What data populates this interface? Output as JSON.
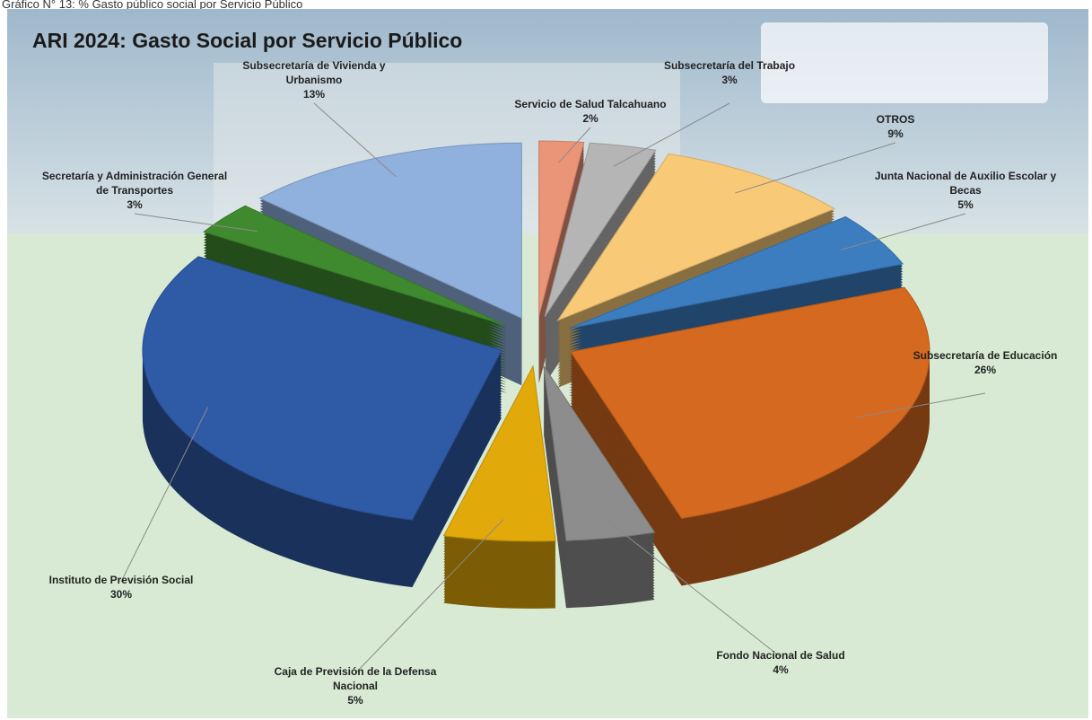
{
  "caption": "Gráfico N° 13: % Gasto público social por Servicio Público",
  "chart_data": {
    "type": "pie",
    "title": "ARI 2024: Gasto Social por Servicio Público",
    "categories": [
      "Servicio de Salud Talcahuano",
      "Subsecretaría del Trabajo",
      "OTROS",
      "Junta Nacional de Auxilio Escolar y Becas",
      "Subsecretaría de Educación",
      "Fondo Nacional de Salud",
      "Caja de Previsión de la Defensa Nacional",
      "Instituto de Previsión Social",
      "Secretaría y Administración General de Transportes",
      "Subsecretaría de Vivienda y Urbanismo"
    ],
    "values": [
      2,
      3,
      9,
      5,
      26,
      4,
      5,
      30,
      3,
      13
    ],
    "value_labels": [
      "2%",
      "3%",
      "9%",
      "5%",
      "26%",
      "4%",
      "5%",
      "30%",
      "3%",
      "13%"
    ],
    "colors": [
      "#ea9478",
      "#b5b5b5",
      "#f8c977",
      "#3c7dc0",
      "#d4691f",
      "#8d8d8d",
      "#e1a90a",
      "#2f5aa6",
      "#3f8a2f",
      "#90b1dd"
    ]
  }
}
